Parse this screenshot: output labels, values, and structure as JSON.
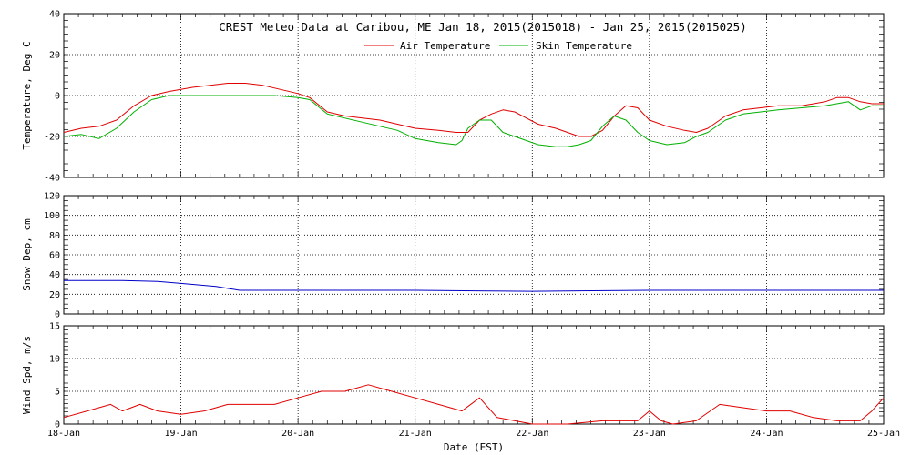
{
  "chart_data": [
    {
      "type": "line",
      "title": "CREST Meteo Data at Caribou, ME   Jan 18, 2015(2015018) - Jan 25, 2015(2015025)",
      "ylabel": "Temperature, Deg C",
      "ylim": [
        -40,
        40
      ],
      "yticks": [
        "-40",
        "-20",
        "0",
        "20",
        "40"
      ],
      "x_categories": [
        "18-Jan",
        "19-Jan",
        "20-Jan",
        "21-Jan",
        "22-Jan",
        "23-Jan",
        "24-Jan",
        "25-Jan"
      ],
      "grid": true,
      "legend": "top-center",
      "series": [
        {
          "name": "Air Temperature",
          "color": "#e00000",
          "x": [
            0,
            0.15,
            0.3,
            0.45,
            0.6,
            0.75,
            0.9,
            1.0,
            1.1,
            1.25,
            1.4,
            1.55,
            1.7,
            1.85,
            2.0,
            2.1,
            2.25,
            2.4,
            2.55,
            2.7,
            2.85,
            3.0,
            3.2,
            3.35,
            3.45,
            3.55,
            3.65,
            3.75,
            3.85,
            3.95,
            4.05,
            4.2,
            4.3,
            4.4,
            4.5,
            4.6,
            4.7,
            4.8,
            4.9,
            5.0,
            5.15,
            5.3,
            5.4,
            5.5,
            5.65,
            5.8,
            5.95,
            6.1,
            6.3,
            6.5,
            6.6,
            6.7,
            6.8,
            6.9,
            7.0
          ],
          "y": [
            -18,
            -16,
            -15,
            -12,
            -5,
            0,
            2,
            3,
            4,
            5,
            6,
            6,
            5,
            3,
            1,
            -1,
            -8,
            -10,
            -11,
            -12,
            -14,
            -16,
            -17,
            -18,
            -18,
            -12,
            -9,
            -7,
            -8,
            -11,
            -14,
            -16,
            -18,
            -20,
            -20,
            -17,
            -10,
            -5,
            -6,
            -12,
            -15,
            -17,
            -18,
            -16,
            -10,
            -7,
            -6,
            -5,
            -5,
            -3,
            -1,
            -1,
            -3,
            -4,
            -4
          ]
        },
        {
          "name": "Skin Temperature",
          "color": "#00b000",
          "x": [
            0,
            0.15,
            0.3,
            0.45,
            0.6,
            0.75,
            0.9,
            1.0,
            1.2,
            1.5,
            1.8,
            2.0,
            2.1,
            2.25,
            2.4,
            2.55,
            2.7,
            2.85,
            3.0,
            3.2,
            3.35,
            3.4,
            3.45,
            3.55,
            3.65,
            3.75,
            3.85,
            3.95,
            4.05,
            4.2,
            4.3,
            4.4,
            4.5,
            4.6,
            4.7,
            4.8,
            4.9,
            5.0,
            5.15,
            5.3,
            5.4,
            5.5,
            5.65,
            5.8,
            5.95,
            6.1,
            6.3,
            6.5,
            6.6,
            6.7,
            6.8,
            6.9,
            7.0
          ],
          "y": [
            -20,
            -19,
            -21,
            -16,
            -8,
            -2,
            0,
            0,
            0,
            0,
            0,
            -1,
            -2,
            -9,
            -11,
            -13,
            -15,
            -17,
            -21,
            -23,
            -24,
            -22,
            -16,
            -12,
            -12,
            -18,
            -20,
            -22,
            -24,
            -25,
            -25,
            -24,
            -22,
            -15,
            -10,
            -12,
            -18,
            -22,
            -24,
            -23,
            -20,
            -18,
            -12,
            -9,
            -8,
            -7,
            -6,
            -5,
            -4,
            -3,
            -7,
            -5,
            -5
          ]
        }
      ]
    },
    {
      "type": "line",
      "ylabel": "Snow Dep, cm",
      "ylim": [
        0,
        120
      ],
      "yticks": [
        "0",
        "20",
        "40",
        "60",
        "80",
        "100",
        "120"
      ],
      "x_categories": [
        "18-Jan",
        "19-Jan",
        "20-Jan",
        "21-Jan",
        "22-Jan",
        "23-Jan",
        "24-Jan",
        "25-Jan"
      ],
      "grid": true,
      "series": [
        {
          "color": "#0000c8",
          "x": [
            0,
            0.5,
            0.8,
            1.0,
            1.3,
            1.5,
            2.0,
            3.0,
            4.0,
            5.0,
            6.0,
            7.0
          ],
          "y": [
            34,
            34,
            33,
            31,
            28,
            24,
            24,
            24,
            23,
            24,
            24,
            24
          ]
        }
      ]
    },
    {
      "type": "line",
      "ylabel": "Wind Spd, m/s",
      "xlabel": "Date (EST)",
      "ylim": [
        0,
        15
      ],
      "yticks": [
        "0",
        "5",
        "10",
        "15"
      ],
      "x_categories": [
        "18-Jan",
        "19-Jan",
        "20-Jan",
        "21-Jan",
        "22-Jan",
        "23-Jan",
        "24-Jan",
        "25-Jan"
      ],
      "grid": true,
      "series": [
        {
          "color": "#e00000",
          "x": [
            0,
            0.2,
            0.4,
            0.5,
            0.65,
            0.8,
            1.0,
            1.2,
            1.4,
            1.6,
            1.8,
            2.0,
            2.2,
            2.4,
            2.6,
            2.8,
            3.0,
            3.2,
            3.4,
            3.55,
            3.7,
            3.85,
            4.0,
            4.3,
            4.6,
            4.9,
            5.0,
            5.1,
            5.2,
            5.4,
            5.6,
            5.8,
            6.0,
            6.2,
            6.4,
            6.6,
            6.8,
            6.9,
            7.0
          ],
          "y": [
            1,
            2,
            3,
            2,
            3,
            2,
            1.5,
            2,
            3,
            3,
            3,
            4,
            5,
            5,
            6,
            5,
            4,
            3,
            2,
            4,
            1,
            0.5,
            0,
            0,
            0.5,
            0.5,
            2,
            0.5,
            0,
            0.5,
            3,
            2.5,
            2,
            2,
            1,
            0.5,
            0.5,
            2,
            4
          ]
        }
      ]
    }
  ]
}
